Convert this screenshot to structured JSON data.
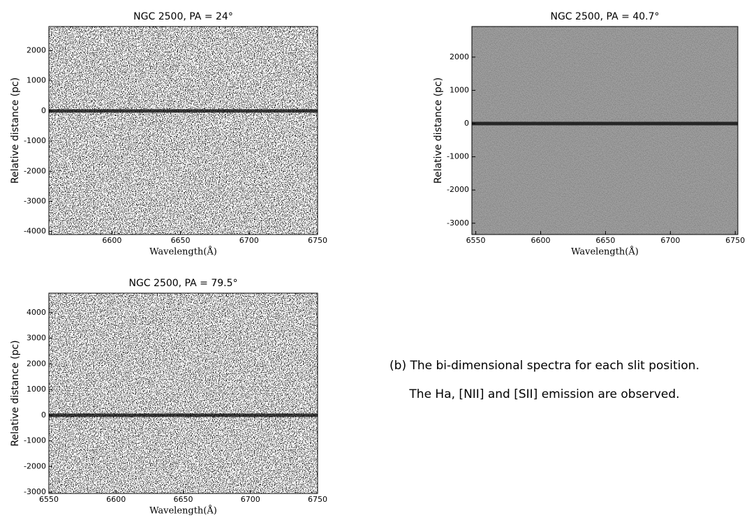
{
  "chart_data": [
    {
      "type": "image",
      "title": "NGC 2500, PA = 24°",
      "xlabel": "Wavelength(Å)",
      "ylabel": "Relative distance (pc)",
      "xlim": [
        6554,
        6750
      ],
      "ylim": [
        -4100,
        2800
      ],
      "xticks": [
        6600,
        6650,
        6700,
        6750
      ],
      "yticks": [
        -4000,
        -3000,
        -2000,
        -1000,
        0,
        1000,
        2000
      ]
    },
    {
      "type": "image",
      "title": "NGC 2500, PA = 40.7°",
      "xlabel": "Wavelength(Å)",
      "ylabel": "Relative distance (pc)",
      "xlim": [
        6547,
        6752
      ],
      "ylim": [
        -3340,
        2920
      ],
      "xticks": [
        6550,
        6600,
        6650,
        6700,
        6750
      ],
      "yticks": [
        -3000,
        -2000,
        -1000,
        0,
        1000,
        2000
      ]
    },
    {
      "type": "image",
      "title": "NGC 2500, PA = 79.5°",
      "xlabel": "Wavelength(Å)",
      "ylabel": "Relative distance (pc)",
      "xlim": [
        6550,
        6750
      ],
      "ylim": [
        -3050,
        4760
      ],
      "xticks": [
        6550,
        6600,
        6650,
        6700,
        6750
      ],
      "yticks": [
        -3000,
        -2000,
        -1000,
        0,
        1000,
        2000,
        3000,
        4000
      ]
    }
  ],
  "caption": [
    "(b) The bi-dimensional spectra for each slit position.",
    "The Ha, [NII] and [SII] emission are observed."
  ]
}
